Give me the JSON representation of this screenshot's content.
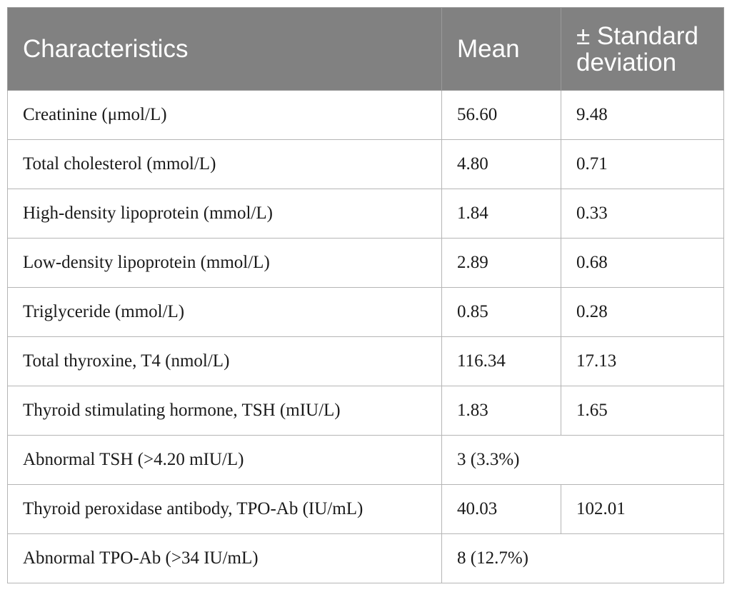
{
  "table": {
    "headers": {
      "characteristics": "Characteristics",
      "mean": "Mean",
      "sd": "± Standard deviation"
    },
    "rows": [
      {
        "label": "Creatinine (μmol/L)",
        "mean": "56.60",
        "sd": "9.48"
      },
      {
        "label": "Total cholesterol (mmol/L)",
        "mean": "4.80",
        "sd": "0.71"
      },
      {
        "label": "High-density lipoprotein (mmol/L)",
        "mean": "1.84",
        "sd": "0.33"
      },
      {
        "label": "Low-density lipoprotein (mmol/L)",
        "mean": "2.89",
        "sd": "0.68"
      },
      {
        "label": "Triglyceride (mmol/L)",
        "mean": "0.85",
        "sd": "0.28"
      },
      {
        "label": "Total thyroxine, T4 (nmol/L)",
        "mean": "116.34",
        "sd": "17.13"
      },
      {
        "label": "Thyroid stimulating hormone, TSH (mIU/L)",
        "mean": "1.83",
        "sd": "1.65"
      },
      {
        "label": "Abnormal TSH (>4.20 mIU/L)",
        "merged": "3 (3.3%)"
      },
      {
        "label": "Thyroid peroxidase antibody, TPO-Ab (IU/mL)",
        "mean": "40.03",
        "sd": "102.01"
      },
      {
        "label": "Abnormal TPO-Ab (>34 IU/mL)",
        "merged": "8 (12.7%)"
      }
    ]
  }
}
